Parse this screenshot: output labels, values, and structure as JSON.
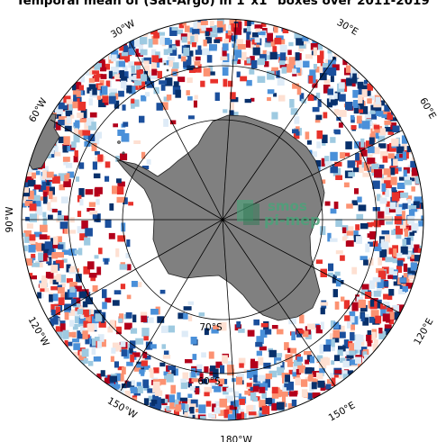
{
  "title": "Temporal mean of (Sat-Argo) in 1°x1° boxes over 2011-2019",
  "watermark": {
    "line1": "smos",
    "line2": "pi-mep"
  },
  "labels": {
    "lon_30w": "30°W",
    "lon_30e": "30°E",
    "lon_60w": "60°W",
    "lon_60e": "60°E",
    "lon_90w": "90°W",
    "lon_120w": "120°W",
    "lon_120e": "120°E",
    "lon_150w": "150°W",
    "lon_150e": "150°E",
    "lon_180w": "180°W",
    "lat_70s": "70°S",
    "lat_60s": "60°S"
  },
  "colors": {
    "land": "#808080",
    "cell_palette": [
      "#08306b",
      "#1b4f9c",
      "#4a90d9",
      "#9ecae1",
      "#deebf7",
      "#fee0d2",
      "#fc9272",
      "#e8322b",
      "#b3001b"
    ],
    "watermark": "#4aa37a"
  }
}
